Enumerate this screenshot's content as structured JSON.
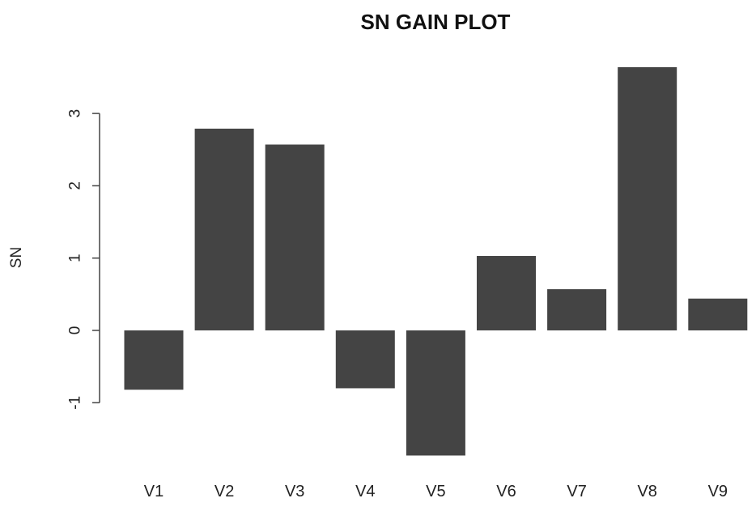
{
  "chart_data": {
    "type": "bar",
    "title": "SN GAIN PLOT",
    "xlabel": "",
    "ylabel": "SN",
    "categories": [
      "V1",
      "V2",
      "V3",
      "V4",
      "V5",
      "V6",
      "V7",
      "V8",
      "V9"
    ],
    "values": [
      -0.82,
      2.79,
      2.57,
      -0.8,
      -1.73,
      1.03,
      0.57,
      3.64,
      0.44
    ],
    "yticks": [
      -1,
      0,
      1,
      2,
      3
    ],
    "ytick_labels": [
      "-1",
      "0",
      "1",
      "2",
      "3"
    ],
    "ylim": [
      -1.8,
      3.7
    ],
    "grid": false,
    "legend": "none",
    "bar_color": "#444444"
  }
}
